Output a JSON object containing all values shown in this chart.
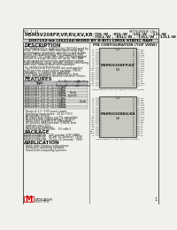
{
  "bg_color": "#f0f0ec",
  "border_color": "#333333",
  "title_part": "M5M5V208FP,VP,RV,KV,KR",
  "title_suffix1": "-70L-W , -85L-W , -10L-W , -12L-W ,",
  "title_suffix2": "-70LL-W , -85LL-W , -10LL-W , -12LL-W",
  "subtitle": "2097152-bit (262144-WORD BY 8-BIT) CMOS STATIC RAM",
  "doc_num": "62 1.21",
  "brand": "MITSUBISHI LSIs",
  "section_description": "DESCRIPTION",
  "section_features": "FEATURES",
  "section_package": "PACKAGE",
  "section_application": "APPLICATION",
  "chip_label1a": "M5M5V208FP,KV",
  "chip_label1b": "-W",
  "chip_label2a": "M5M5V208KV,KR",
  "chip_label2b": "-W",
  "pin_config_title": "PIN CONFIGURATION (TOP VIEW)",
  "text_color": "#1a1a1a",
  "line_color": "#555555",
  "chip_fill": "#c8c8c0",
  "header_fill": "#cccccc",
  "table_fill1": "#e8e8e4",
  "table_fill2": "#dcdcd8"
}
